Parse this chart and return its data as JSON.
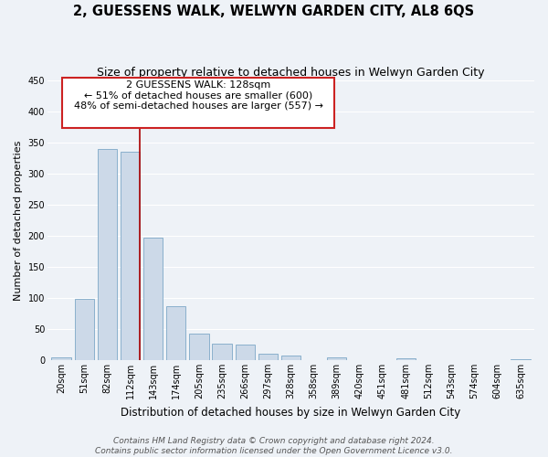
{
  "title": "2, GUESSENS WALK, WELWYN GARDEN CITY, AL8 6QS",
  "subtitle": "Size of property relative to detached houses in Welwyn Garden City",
  "xlabel": "Distribution of detached houses by size in Welwyn Garden City",
  "ylabel": "Number of detached properties",
  "bar_labels": [
    "20sqm",
    "51sqm",
    "82sqm",
    "112sqm",
    "143sqm",
    "174sqm",
    "205sqm",
    "235sqm",
    "266sqm",
    "297sqm",
    "328sqm",
    "358sqm",
    "389sqm",
    "420sqm",
    "451sqm",
    "481sqm",
    "512sqm",
    "543sqm",
    "574sqm",
    "604sqm",
    "635sqm"
  ],
  "bar_values": [
    5,
    98,
    340,
    335,
    197,
    87,
    43,
    26,
    25,
    11,
    8,
    0,
    5,
    0,
    0,
    3,
    0,
    0,
    0,
    0,
    2
  ],
  "bar_color": "#ccd9e8",
  "bar_edge_color": "#8ab0cc",
  "vline_color": "#aa0000",
  "vline_x": 3.42,
  "annotation_line1": "2 GUESSENS WALK: 128sqm",
  "annotation_line2": "← 51% of detached houses are smaller (600)",
  "annotation_line3": "48% of semi-detached houses are larger (557) →",
  "annotation_box_facecolor": "#ffffff",
  "annotation_box_edgecolor": "#cc2222",
  "ylim": [
    0,
    450
  ],
  "yticks": [
    0,
    50,
    100,
    150,
    200,
    250,
    300,
    350,
    400,
    450
  ],
  "bg_color": "#eef2f7",
  "grid_color": "#ffffff",
  "title_fontsize": 10.5,
  "subtitle_fontsize": 9,
  "xlabel_fontsize": 8.5,
  "ylabel_fontsize": 8,
  "tick_fontsize": 7,
  "annotation_fontsize": 8,
  "footer_fontsize": 6.5,
  "footer": "Contains HM Land Registry data © Crown copyright and database right 2024.\nContains public sector information licensed under the Open Government Licence v3.0."
}
